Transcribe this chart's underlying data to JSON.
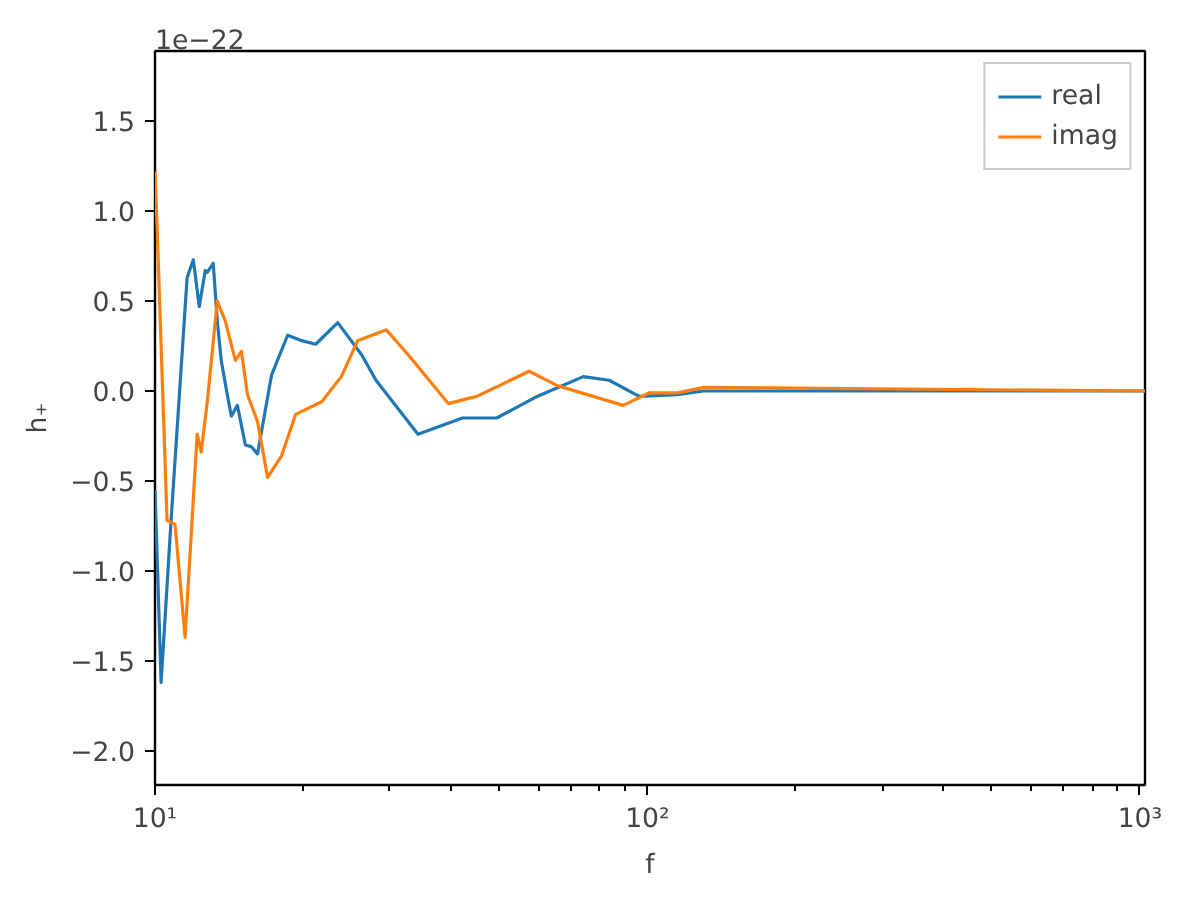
{
  "chart_data": {
    "type": "line",
    "xlabel": "f",
    "ylabel": "h₊",
    "annotations": [
      "1e−22"
    ],
    "log": "x",
    "xlim": [
      10,
      1024
    ],
    "ylim": [
      -2.19,
      1.89
    ],
    "xticks": [
      {
        "value": 10,
        "label": "10¹"
      },
      {
        "value": 100,
        "label": "10²"
      },
      {
        "value": 1000,
        "label": "10³"
      }
    ],
    "yticks": [
      {
        "value": -2,
        "label": "−2.0"
      },
      {
        "value": -1.5,
        "label": "−1.5"
      },
      {
        "value": -1,
        "label": "−1.0"
      },
      {
        "value": -0.5,
        "label": "−0.5"
      },
      {
        "value": 0,
        "label": "0.0"
      },
      {
        "value": 0.5,
        "label": "0.5"
      },
      {
        "value": 1,
        "label": "1.0"
      },
      {
        "value": 1.5,
        "label": "1.5"
      }
    ],
    "grid": false,
    "legend": "top right",
    "line_style": "solid",
    "marker": "none",
    "series": [
      {
        "name": "real",
        "color": "#1f77b4",
        "x": [
          10.0,
          10.29,
          10.78,
          11.62,
          11.96,
          12.3,
          12.65,
          12.77,
          13.13,
          13.38,
          13.63,
          14.02,
          14.29,
          14.7,
          15.26,
          15.7,
          16.15,
          17.25,
          18.59,
          19.86,
          21.2,
          23.5,
          26.3,
          28.1,
          34.2,
          42.1,
          49.4,
          59.7,
          74.1,
          83.6,
          96.2,
          115.2,
          130,
          1024
        ],
        "values": [
          -0.55,
          -1.62,
          -0.72,
          0.63,
          0.73,
          0.47,
          0.67,
          0.66,
          0.71,
          0.39,
          0.17,
          -0.02,
          -0.14,
          -0.08,
          -0.3,
          -0.31,
          -0.35,
          0.09,
          0.31,
          0.28,
          0.26,
          0.38,
          0.2,
          0.06,
          -0.24,
          -0.15,
          -0.15,
          -0.03,
          0.08,
          0.06,
          -0.03,
          -0.02,
          0.0,
          0.0
        ]
      },
      {
        "name": "imag",
        "color": "#ff7f0e",
        "x": [
          10.0,
          10.09,
          10.58,
          10.98,
          11.51,
          12.18,
          12.41,
          12.77,
          13.38,
          13.89,
          14.56,
          14.98,
          15.41,
          16.15,
          16.93,
          18.07,
          19.3,
          21.8,
          23.9,
          25.8,
          29.5,
          32.7,
          39.4,
          45.0,
          57.5,
          65.6,
          89.3,
          100.9,
          115.2,
          130,
          1024
        ],
        "values": [
          1.22,
          0.94,
          -0.72,
          -0.74,
          -1.37,
          -0.24,
          -0.34,
          -0.06,
          0.5,
          0.39,
          0.17,
          0.22,
          -0.02,
          -0.17,
          -0.48,
          -0.36,
          -0.13,
          -0.06,
          0.08,
          0.28,
          0.34,
          0.2,
          -0.07,
          -0.03,
          0.11,
          0.03,
          -0.08,
          -0.01,
          -0.01,
          0.02,
          0.0
        ]
      }
    ]
  }
}
